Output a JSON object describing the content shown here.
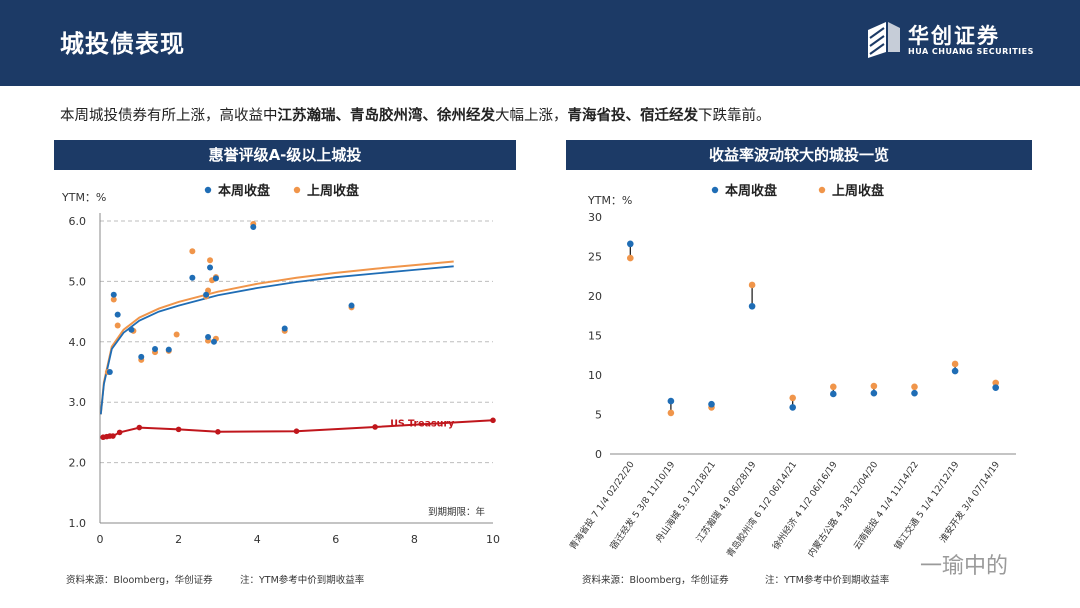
{
  "header": {
    "title": "城投债表现",
    "logo_name": "华创证券",
    "logo_sub": "HUA CHUANG SECURITIES"
  },
  "summary": {
    "prefix": "本周城投债券有所上涨，高收益中",
    "bold1": "江苏瀚瑞、青岛胶州湾、徐州经发",
    "mid": "大幅上涨，",
    "bold2": "青海省投、宿迁经发",
    "suffix": "下跌靠前。"
  },
  "colors": {
    "header_bg": "#1c3a66",
    "this_week": "#1f6db5",
    "last_week": "#f0954a",
    "us_treasury": "#c0161c"
  },
  "chart_data": [
    {
      "type": "scatter",
      "panel_title": "惠誉评级A-级以上城投",
      "ylabel": "YTM：%",
      "xlabel": "到期期限：年",
      "xlim": [
        0,
        10
      ],
      "ylim": [
        1.0,
        6.0
      ],
      "x_ticks": [
        "0",
        "2",
        "4",
        "6",
        "8",
        "10"
      ],
      "y_ticks": [
        "1.0",
        "2.0",
        "3.0",
        "4.0",
        "5.0",
        "6.0"
      ],
      "grid": true,
      "legend_position": "top",
      "series": [
        {
          "name": "本周收盘",
          "points": [
            [
              0.25,
              3.5
            ],
            [
              0.35,
              4.78
            ],
            [
              0.45,
              4.45
            ],
            [
              0.8,
              4.2
            ],
            [
              1.05,
              3.75
            ],
            [
              1.4,
              3.88
            ],
            [
              1.75,
              3.87
            ],
            [
              2.35,
              5.06
            ],
            [
              2.7,
              4.78
            ],
            [
              2.75,
              4.08
            ],
            [
              2.8,
              5.23
            ],
            [
              2.9,
              4.0
            ],
            [
              2.95,
              5.05
            ],
            [
              3.9,
              5.9
            ],
            [
              4.7,
              4.22
            ],
            [
              6.4,
              4.6
            ]
          ]
        },
        {
          "name": "上周收盘",
          "points": [
            [
              0.2,
              3.5
            ],
            [
              0.35,
              4.7
            ],
            [
              0.45,
              4.27
            ],
            [
              0.85,
              4.18
            ],
            [
              1.05,
              3.7
            ],
            [
              1.4,
              3.83
            ],
            [
              1.75,
              3.85
            ],
            [
              1.95,
              4.12
            ],
            [
              2.35,
              5.5
            ],
            [
              2.7,
              4.75
            ],
            [
              2.75,
              4.85
            ],
            [
              2.75,
              4.02
            ],
            [
              2.8,
              5.35
            ],
            [
              2.85,
              5.02
            ],
            [
              2.95,
              5.07
            ],
            [
              2.95,
              4.05
            ],
            [
              3.9,
              5.95
            ],
            [
              4.7,
              4.18
            ],
            [
              6.4,
              4.57
            ]
          ]
        }
      ],
      "curves": [
        {
          "name": "本周收盘",
          "points": [
            [
              0.02,
              2.8
            ],
            [
              0.1,
              3.3
            ],
            [
              0.3,
              3.88
            ],
            [
              0.6,
              4.15
            ],
            [
              1.0,
              4.35
            ],
            [
              1.5,
              4.5
            ],
            [
              2.0,
              4.6
            ],
            [
              3.0,
              4.77
            ],
            [
              4.0,
              4.89
            ],
            [
              5.0,
              4.99
            ],
            [
              6.0,
              5.07
            ],
            [
              7.0,
              5.13
            ],
            [
              8.0,
              5.19
            ],
            [
              9.0,
              5.25
            ]
          ]
        },
        {
          "name": "上周收盘",
          "points": [
            [
              0.02,
              2.8
            ],
            [
              0.1,
              3.33
            ],
            [
              0.3,
              3.92
            ],
            [
              0.6,
              4.2
            ],
            [
              1.0,
              4.4
            ],
            [
              1.5,
              4.55
            ],
            [
              2.0,
              4.66
            ],
            [
              3.0,
              4.83
            ],
            [
              4.0,
              4.96
            ],
            [
              5.0,
              5.06
            ],
            [
              6.0,
              5.14
            ],
            [
              7.0,
              5.21
            ],
            [
              8.0,
              5.27
            ],
            [
              9.0,
              5.33
            ]
          ]
        }
      ],
      "treasury": {
        "name": "US Treasury",
        "points": [
          [
            0.08,
            2.42
          ],
          [
            0.17,
            2.43
          ],
          [
            0.25,
            2.44
          ],
          [
            0.33,
            2.44
          ],
          [
            0.5,
            2.5
          ],
          [
            1.0,
            2.58
          ],
          [
            2.0,
            2.55
          ],
          [
            3.0,
            2.51
          ],
          [
            5.0,
            2.52
          ],
          [
            7.0,
            2.59
          ],
          [
            10.0,
            2.7
          ]
        ]
      }
    },
    {
      "type": "dumbbell",
      "panel_title": "收益率波动较大的城投一览",
      "ylabel": "YTM：%",
      "ylim": [
        0,
        30
      ],
      "y_ticks": [
        "0",
        "5",
        "10",
        "15",
        "20",
        "25",
        "30"
      ],
      "grid": false,
      "legend_position": "top",
      "series_names": [
        "本周收盘",
        "上周收盘"
      ],
      "categories": [
        "青海省投 7 1/4 02/22/20",
        "宿迁经发 5 3/8 11/10/19",
        "舟山海城 5.9 12/18/21",
        "江苏瀚瑞 4.9 06/28/19",
        "青岛胶州湾 6 1/2 06/14/21",
        "徐州经济 4 1/2 06/16/19",
        "内蒙古公路 4 3/8 12/04/20",
        "云南能投 4 1/4 11/14/22",
        "镇江交通 5 1/4 12/12/19",
        "淮安开发 3/4 07/14/19"
      ],
      "this_week": [
        26.6,
        6.7,
        6.3,
        18.7,
        5.9,
        7.6,
        7.7,
        7.7,
        10.5,
        8.4
      ],
      "last_week": [
        24.8,
        5.2,
        5.9,
        21.4,
        7.1,
        8.5,
        8.6,
        8.5,
        11.4,
        9.0
      ]
    }
  ],
  "sources": {
    "left_source": "资料来源：Bloomberg，华创证券",
    "left_note": "注：YTM参考中价到期收益率",
    "right_source": "资料来源：Bloomberg，华创证券",
    "right_note": "注：YTM参考中价到期收益率"
  },
  "watermark": "一瑜中的"
}
